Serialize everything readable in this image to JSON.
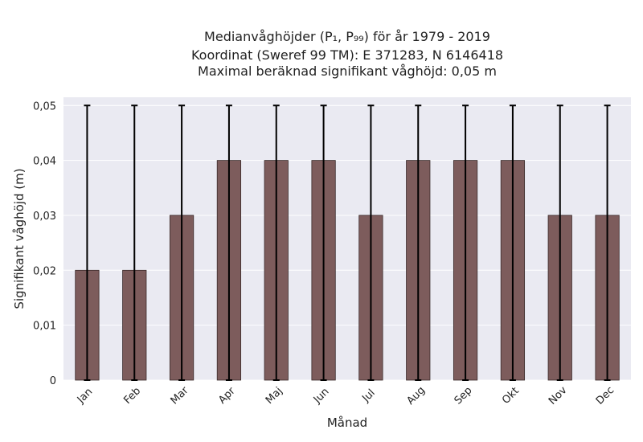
{
  "chart_data": {
    "type": "bar",
    "title_lines": [
      "Medianvåghöjder (P₁, P₉₉) för år 1979 - 2019",
      "Koordinat (Sweref 99 TM): E 371283, N 6146418",
      "Maximal beräknad signifikant våghöjd: 0,05 m"
    ],
    "xlabel": "Månad",
    "ylabel": "Signifikant våghöjd (m)",
    "categories": [
      "Jan",
      "Feb",
      "Mar",
      "Apr",
      "Maj",
      "Jun",
      "Jul",
      "Aug",
      "Sep",
      "Okt",
      "Nov",
      "Dec"
    ],
    "values": [
      0.02,
      0.02,
      0.03,
      0.04,
      0.04,
      0.04,
      0.03,
      0.04,
      0.04,
      0.04,
      0.03,
      0.03
    ],
    "error_low": [
      0,
      0,
      0,
      0,
      0,
      0,
      0,
      0,
      0,
      0,
      0,
      0
    ],
    "error_high": [
      0.05,
      0.05,
      0.05,
      0.05,
      0.05,
      0.05,
      0.05,
      0.05,
      0.05,
      0.05,
      0.05,
      0.05
    ],
    "ylim": [
      0,
      0.0515
    ],
    "yticks": [
      0,
      0.01,
      0.02,
      0.03,
      0.04,
      0.05
    ],
    "ytick_labels": [
      "0",
      "0,01",
      "0,02",
      "0,03",
      "0,04",
      "0,05"
    ],
    "grid": true,
    "colors": {
      "bar": "#7d5c5c",
      "plot_background": "#eaeaf2",
      "error_bar": "#000000"
    }
  }
}
